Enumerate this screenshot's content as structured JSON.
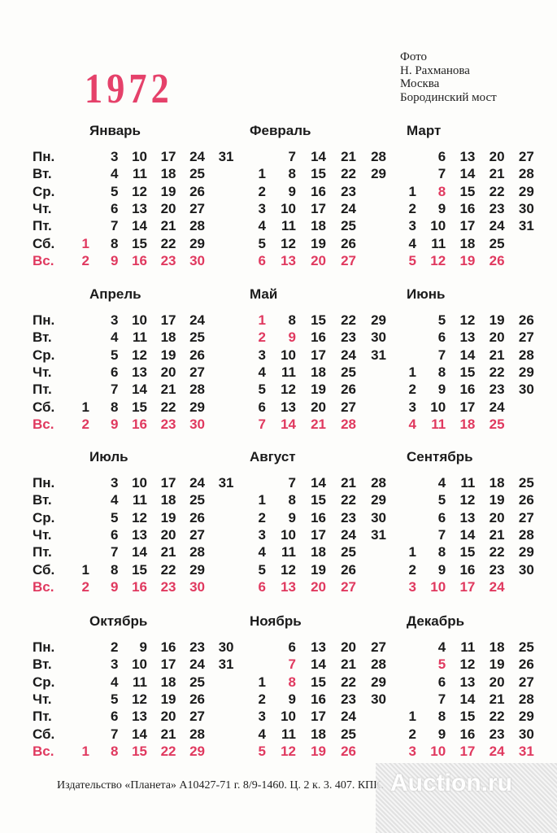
{
  "year": "1972",
  "credits": [
    "Фото",
    "Н. Рахманова",
    "Москва",
    "Бородинский мост"
  ],
  "day_labels": [
    "Пн.",
    "Вт.",
    "Ср.",
    "Чт.",
    "Пт.",
    "Сб.",
    "Вс."
  ],
  "colors": {
    "red": "#e0395f",
    "black": "#1b1b1b"
  },
  "months": [
    {
      "name": "Январь",
      "rows": [
        [
          "",
          "3",
          "10",
          "17",
          "24",
          "31"
        ],
        [
          "",
          "4",
          "11",
          "18",
          "25",
          ""
        ],
        [
          "",
          "5",
          "12",
          "19",
          "26",
          ""
        ],
        [
          "",
          "6",
          "13",
          "20",
          "27",
          ""
        ],
        [
          "",
          "7",
          "14",
          "21",
          "28",
          ""
        ],
        [
          "1",
          "8",
          "15",
          "22",
          "29",
          ""
        ],
        [
          "2",
          "9",
          "16",
          "23",
          "30",
          ""
        ]
      ],
      "holidays": [
        "1"
      ]
    },
    {
      "name": "Февраль",
      "rows": [
        [
          "",
          "7",
          "14",
          "21",
          "28"
        ],
        [
          "1",
          "8",
          "15",
          "22",
          "29"
        ],
        [
          "2",
          "9",
          "16",
          "23",
          ""
        ],
        [
          "3",
          "10",
          "17",
          "24",
          ""
        ],
        [
          "4",
          "11",
          "18",
          "25",
          ""
        ],
        [
          "5",
          "12",
          "19",
          "26",
          ""
        ],
        [
          "6",
          "13",
          "20",
          "27",
          ""
        ]
      ],
      "holidays": []
    },
    {
      "name": "Март",
      "rows": [
        [
          "",
          "6",
          "13",
          "20",
          "27"
        ],
        [
          "",
          "7",
          "14",
          "21",
          "28"
        ],
        [
          "1",
          "8",
          "15",
          "22",
          "29"
        ],
        [
          "2",
          "9",
          "16",
          "23",
          "30"
        ],
        [
          "3",
          "10",
          "17",
          "24",
          "31"
        ],
        [
          "4",
          "11",
          "18",
          "25",
          ""
        ],
        [
          "5",
          "12",
          "19",
          "26",
          ""
        ]
      ],
      "holidays": [
        "8"
      ]
    },
    {
      "name": "Апрель",
      "rows": [
        [
          "",
          "3",
          "10",
          "17",
          "24"
        ],
        [
          "",
          "4",
          "11",
          "18",
          "25"
        ],
        [
          "",
          "5",
          "12",
          "19",
          "26"
        ],
        [
          "",
          "6",
          "13",
          "20",
          "27"
        ],
        [
          "",
          "7",
          "14",
          "21",
          "28"
        ],
        [
          "1",
          "8",
          "15",
          "22",
          "29"
        ],
        [
          "2",
          "9",
          "16",
          "23",
          "30"
        ]
      ],
      "holidays": []
    },
    {
      "name": "Май",
      "rows": [
        [
          "1",
          "8",
          "15",
          "22",
          "29"
        ],
        [
          "2",
          "9",
          "16",
          "23",
          "30"
        ],
        [
          "3",
          "10",
          "17",
          "24",
          "31"
        ],
        [
          "4",
          "11",
          "18",
          "25",
          ""
        ],
        [
          "5",
          "12",
          "19",
          "26",
          ""
        ],
        [
          "6",
          "13",
          "20",
          "27",
          ""
        ],
        [
          "7",
          "14",
          "21",
          "28",
          ""
        ]
      ],
      "holidays": [
        "1",
        "2",
        "9"
      ]
    },
    {
      "name": "Июнь",
      "rows": [
        [
          "",
          "5",
          "12",
          "19",
          "26"
        ],
        [
          "",
          "6",
          "13",
          "20",
          "27"
        ],
        [
          "",
          "7",
          "14",
          "21",
          "28"
        ],
        [
          "1",
          "8",
          "15",
          "22",
          "29"
        ],
        [
          "2",
          "9",
          "16",
          "23",
          "30"
        ],
        [
          "3",
          "10",
          "17",
          "24",
          ""
        ],
        [
          "4",
          "11",
          "18",
          "25",
          ""
        ]
      ],
      "holidays": []
    },
    {
      "name": "Июль",
      "rows": [
        [
          "",
          "3",
          "10",
          "17",
          "24",
          "31"
        ],
        [
          "",
          "4",
          "11",
          "18",
          "25",
          ""
        ],
        [
          "",
          "5",
          "12",
          "19",
          "26",
          ""
        ],
        [
          "",
          "6",
          "13",
          "20",
          "27",
          ""
        ],
        [
          "",
          "7",
          "14",
          "21",
          "28",
          ""
        ],
        [
          "1",
          "8",
          "15",
          "22",
          "29",
          ""
        ],
        [
          "2",
          "9",
          "16",
          "23",
          "30",
          ""
        ]
      ],
      "holidays": []
    },
    {
      "name": "Август",
      "rows": [
        [
          "",
          "7",
          "14",
          "21",
          "28"
        ],
        [
          "1",
          "8",
          "15",
          "22",
          "29"
        ],
        [
          "2",
          "9",
          "16",
          "23",
          "30"
        ],
        [
          "3",
          "10",
          "17",
          "24",
          "31"
        ],
        [
          "4",
          "11",
          "18",
          "25",
          ""
        ],
        [
          "5",
          "12",
          "19",
          "26",
          ""
        ],
        [
          "6",
          "13",
          "20",
          "27",
          ""
        ]
      ],
      "holidays": []
    },
    {
      "name": "Сентябрь",
      "rows": [
        [
          "",
          "4",
          "11",
          "18",
          "25"
        ],
        [
          "",
          "5",
          "12",
          "19",
          "26"
        ],
        [
          "",
          "6",
          "13",
          "20",
          "27"
        ],
        [
          "",
          "7",
          "14",
          "21",
          "28"
        ],
        [
          "1",
          "8",
          "15",
          "22",
          "29"
        ],
        [
          "2",
          "9",
          "16",
          "23",
          "30"
        ],
        [
          "3",
          "10",
          "17",
          "24",
          ""
        ]
      ],
      "holidays": []
    },
    {
      "name": "Октябрь",
      "rows": [
        [
          "",
          "2",
          "9",
          "16",
          "23",
          "30"
        ],
        [
          "",
          "3",
          "10",
          "17",
          "24",
          "31"
        ],
        [
          "",
          "4",
          "11",
          "18",
          "25",
          ""
        ],
        [
          "",
          "5",
          "12",
          "19",
          "26",
          ""
        ],
        [
          "",
          "6",
          "13",
          "20",
          "27",
          ""
        ],
        [
          "",
          "7",
          "14",
          "21",
          "28",
          ""
        ],
        [
          "1",
          "8",
          "15",
          "22",
          "29",
          ""
        ]
      ],
      "holidays": []
    },
    {
      "name": "Ноябрь",
      "rows": [
        [
          "",
          "6",
          "13",
          "20",
          "27"
        ],
        [
          "",
          "7",
          "14",
          "21",
          "28"
        ],
        [
          "1",
          "8",
          "15",
          "22",
          "29"
        ],
        [
          "2",
          "9",
          "16",
          "23",
          "30"
        ],
        [
          "3",
          "10",
          "17",
          "24",
          ""
        ],
        [
          "4",
          "11",
          "18",
          "25",
          ""
        ],
        [
          "5",
          "12",
          "19",
          "26",
          ""
        ]
      ],
      "holidays": [
        "7",
        "8"
      ]
    },
    {
      "name": "Декабрь",
      "rows": [
        [
          "",
          "4",
          "11",
          "18",
          "25"
        ],
        [
          "",
          "5",
          "12",
          "19",
          "26"
        ],
        [
          "",
          "6",
          "13",
          "20",
          "27"
        ],
        [
          "",
          "7",
          "14",
          "21",
          "28"
        ],
        [
          "1",
          "8",
          "15",
          "22",
          "29"
        ],
        [
          "2",
          "9",
          "16",
          "23",
          "30"
        ],
        [
          "3",
          "10",
          "17",
          "24",
          "31"
        ]
      ],
      "holidays": [
        "5"
      ]
    }
  ],
  "footer": "Издательство «Планета» А10427-71 г. 8/9-1460. Ц. 2 к. 3. 407. КПК.",
  "watermark": "Auction.ru"
}
